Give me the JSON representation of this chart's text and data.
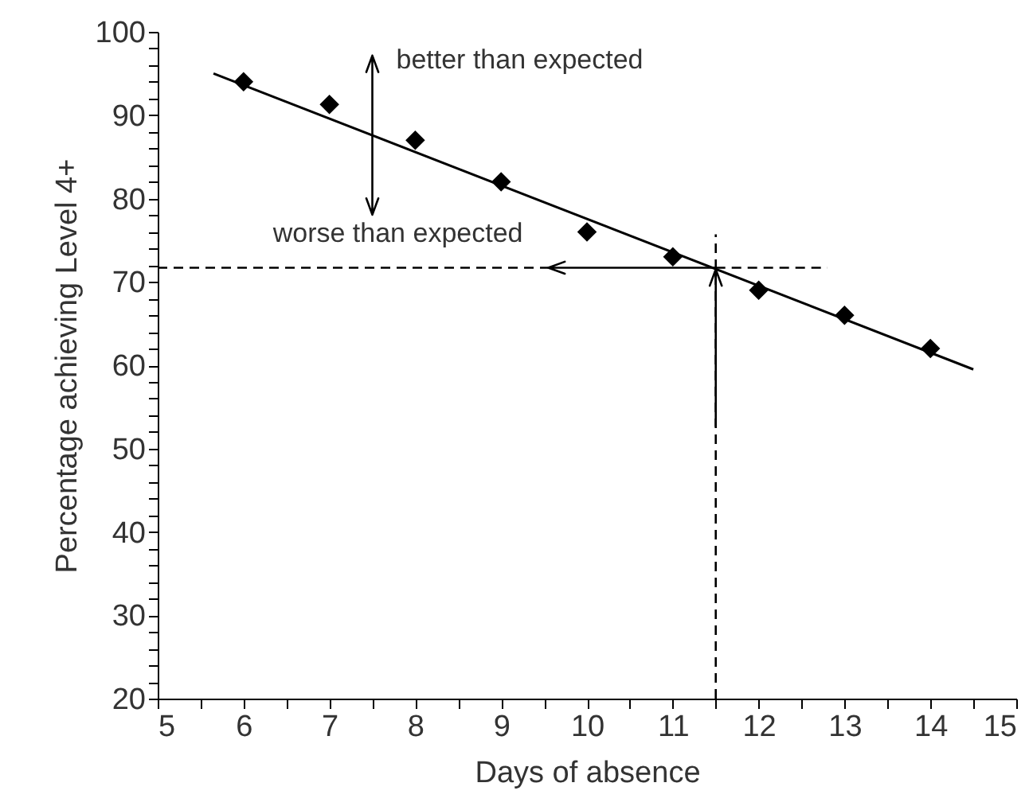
{
  "chart_data": {
    "type": "scatter",
    "xlabel": "Days of absence",
    "ylabel": "Percentage achieving Level 4+",
    "x": [
      6,
      7,
      8,
      9,
      10,
      11,
      12,
      13,
      14
    ],
    "series": [
      {
        "color": "#000000",
        "marker": "diamond",
        "values": [
          94,
          91.3,
          87,
          82,
          76,
          73,
          69,
          66,
          62
        ]
      },
      {
        "type": "line",
        "color": "#000000",
        "x": [
          5.65,
          14.5
        ],
        "values": [
          95,
          59.5
        ]
      }
    ],
    "xlim": [
      5,
      15
    ],
    "ylim": [
      20,
      100
    ],
    "xticks": [
      5,
      {
        "value": 5.5,
        "label": null
      },
      6,
      {
        "value": 6.5,
        "label": null
      },
      7,
      {
        "value": 7.5,
        "label": null
      },
      8,
      {
        "value": 8.5,
        "label": null
      },
      9,
      {
        "value": 9.5,
        "label": null
      },
      10,
      {
        "value": 10.5,
        "label": null
      },
      11,
      {
        "value": 11.5,
        "label": null
      },
      12,
      {
        "value": 12.5,
        "label": null
      },
      13,
      {
        "value": 13.5,
        "label": null
      },
      14,
      {
        "value": 14.5,
        "label": null
      },
      15
    ],
    "yticks": [
      20,
      {
        "value": 22,
        "label": null
      },
      {
        "value": 24,
        "label": null
      },
      {
        "value": 26,
        "label": null
      },
      {
        "value": 28,
        "label": null
      },
      30,
      {
        "value": 32,
        "label": null
      },
      {
        "value": 34,
        "label": null
      },
      {
        "value": 36,
        "label": null
      },
      {
        "value": 38,
        "label": null
      },
      40,
      {
        "value": 42,
        "label": null
      },
      {
        "value": 44,
        "label": null
      },
      {
        "value": 46,
        "label": null
      },
      {
        "value": 48,
        "label": null
      },
      50,
      {
        "value": 52,
        "label": null
      },
      {
        "value": 54,
        "label": null
      },
      {
        "value": 56,
        "label": null
      },
      {
        "value": 58,
        "label": null
      },
      60,
      {
        "value": 62,
        "label": null
      },
      {
        "value": 64,
        "label": null
      },
      {
        "value": 66,
        "label": null
      },
      {
        "value": 68,
        "label": null
      },
      70,
      {
        "value": 72,
        "label": null
      },
      {
        "value": 74,
        "label": null
      },
      {
        "value": 76,
        "label": null
      },
      {
        "value": 78,
        "label": null
      },
      80,
      {
        "value": 82,
        "label": null
      },
      {
        "value": 84,
        "label": null
      },
      {
        "value": 86,
        "label": null
      },
      {
        "value": 88,
        "label": null
      },
      90,
      {
        "value": 92,
        "label": null
      },
      {
        "value": 94,
        "label": null
      },
      {
        "value": 96,
        "label": null
      },
      {
        "value": 98,
        "label": null
      },
      100
    ],
    "ref_lines": [
      {
        "axis": "y",
        "value": 71.7,
        "line_style": "dashed",
        "color": "#000000"
      },
      {
        "axis": "x",
        "value": 11.5,
        "line_style": "dashed",
        "color": "#000000"
      }
    ],
    "annotations": [
      {
        "text": "better than expected",
        "x": 7.5,
        "y": 87.6
      },
      {
        "text": "worse than expected",
        "x": 9.55,
        "y": 71.7
      }
    ]
  }
}
